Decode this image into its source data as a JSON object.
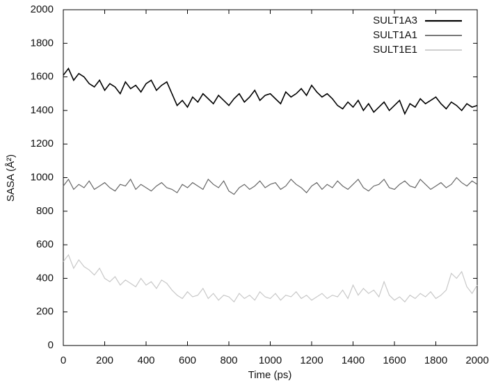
{
  "chart_data": {
    "type": "line",
    "x_label": "Time (ps)",
    "y_label": "SASA (Å²)",
    "x": [
      0,
      25,
      50,
      75,
      100,
      125,
      150,
      175,
      200,
      225,
      250,
      275,
      300,
      325,
      350,
      375,
      400,
      425,
      450,
      475,
      500,
      525,
      550,
      575,
      600,
      625,
      650,
      675,
      700,
      725,
      750,
      775,
      800,
      825,
      850,
      875,
      900,
      925,
      950,
      975,
      1000,
      1025,
      1050,
      1075,
      1100,
      1125,
      1150,
      1175,
      1200,
      1225,
      1250,
      1275,
      1300,
      1325,
      1350,
      1375,
      1400,
      1425,
      1450,
      1475,
      1500,
      1525,
      1550,
      1575,
      1600,
      1625,
      1650,
      1675,
      1700,
      1725,
      1750,
      1775,
      1800,
      1825,
      1850,
      1875,
      1900,
      1925,
      1950,
      1975,
      2000
    ],
    "series": [
      {
        "name": "SULT1A3",
        "color": "#000000",
        "width": 1.6,
        "values": [
          1610,
          1650,
          1580,
          1620,
          1600,
          1560,
          1540,
          1580,
          1520,
          1560,
          1540,
          1500,
          1570,
          1530,
          1550,
          1510,
          1560,
          1580,
          1520,
          1550,
          1570,
          1500,
          1430,
          1460,
          1420,
          1480,
          1450,
          1500,
          1470,
          1440,
          1490,
          1460,
          1430,
          1470,
          1500,
          1450,
          1480,
          1520,
          1460,
          1490,
          1500,
          1470,
          1440,
          1510,
          1480,
          1500,
          1530,
          1490,
          1550,
          1510,
          1480,
          1500,
          1470,
          1430,
          1410,
          1450,
          1420,
          1460,
          1400,
          1440,
          1390,
          1420,
          1450,
          1400,
          1430,
          1460,
          1380,
          1440,
          1420,
          1470,
          1440,
          1460,
          1480,
          1440,
          1410,
          1450,
          1430,
          1400,
          1440,
          1420,
          1430
        ]
      },
      {
        "name": "SULT1A1",
        "color": "#666666",
        "width": 1.2,
        "values": [
          950,
          990,
          930,
          960,
          940,
          980,
          930,
          950,
          970,
          940,
          920,
          960,
          950,
          990,
          930,
          960,
          940,
          920,
          950,
          970,
          940,
          930,
          910,
          960,
          940,
          970,
          950,
          930,
          990,
          960,
          940,
          980,
          920,
          900,
          940,
          960,
          930,
          950,
          980,
          940,
          960,
          970,
          930,
          950,
          990,
          960,
          940,
          910,
          950,
          970,
          930,
          960,
          940,
          980,
          950,
          930,
          960,
          990,
          940,
          920,
          950,
          960,
          990,
          940,
          930,
          960,
          980,
          950,
          940,
          990,
          960,
          930,
          950,
          970,
          940,
          960,
          1000,
          970,
          950,
          980,
          960
        ]
      },
      {
        "name": "SULT1E1",
        "color": "#c8c8c8",
        "width": 1.2,
        "values": [
          500,
          540,
          460,
          510,
          470,
          450,
          420,
          460,
          400,
          380,
          410,
          360,
          390,
          370,
          350,
          400,
          360,
          380,
          340,
          390,
          370,
          330,
          300,
          280,
          320,
          290,
          300,
          340,
          280,
          310,
          270,
          300,
          290,
          260,
          310,
          280,
          300,
          270,
          320,
          290,
          280,
          310,
          270,
          300,
          290,
          320,
          280,
          300,
          270,
          290,
          310,
          280,
          300,
          290,
          330,
          280,
          360,
          300,
          340,
          310,
          330,
          290,
          380,
          300,
          270,
          290,
          260,
          300,
          280,
          310,
          290,
          320,
          280,
          300,
          330,
          430,
          400,
          440,
          350,
          310,
          360
        ]
      }
    ],
    "xlim": [
      0,
      2000
    ],
    "ylim": [
      0,
      2000
    ],
    "xticks": [
      0,
      200,
      400,
      600,
      800,
      1000,
      1200,
      1400,
      1600,
      1800,
      2000
    ],
    "yticks": [
      0,
      200,
      400,
      600,
      800,
      1000,
      1200,
      1400,
      1600,
      1800,
      2000
    ],
    "grid": false,
    "legend": "upper right"
  }
}
